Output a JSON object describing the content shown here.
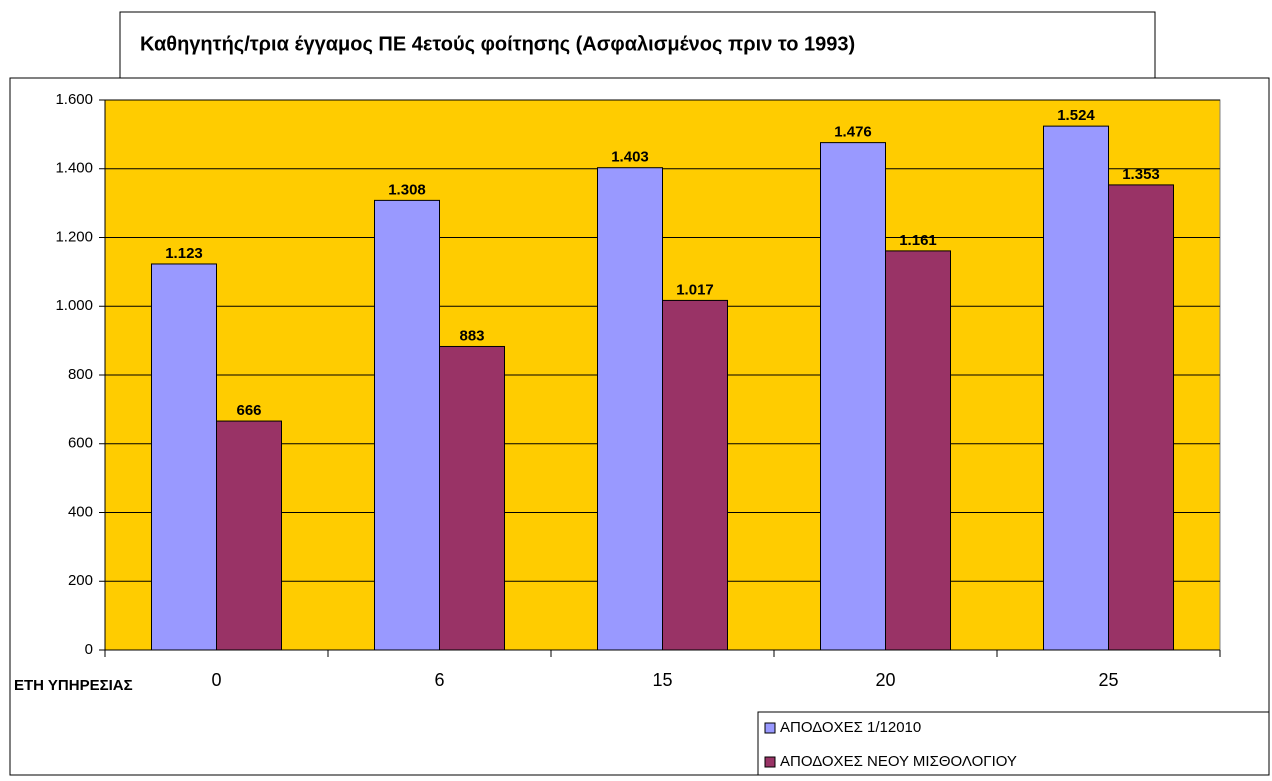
{
  "chart_data": {
    "type": "bar",
    "title": "Καθηγητής/τρια έγγαμος ΠΕ 4ετούς φοίτησης (Ασφαλισμένος πριν το 1993)",
    "x_label": "ΕΤΗ ΥΠΗΡΕΣΙΑΣ",
    "categories": [
      "0",
      "6",
      "15",
      "20",
      "25"
    ],
    "series": [
      {
        "name": "ΑΠΟΔΟΧΕΣ 1/12010",
        "color": "#9999ff",
        "values": [
          1123,
          1308,
          1403,
          1476,
          1524
        ],
        "value_labels": [
          "1.123",
          "1.308",
          "1.403",
          "1.476",
          "1.524"
        ]
      },
      {
        "name": "ΑΠΟΔΟΧΕΣ ΝΕΟΥ ΜΙΣΘΟΛΟΓΙΟΥ",
        "color": "#993366",
        "values": [
          666,
          883,
          1017,
          1161,
          1353
        ],
        "value_labels": [
          "666",
          "883",
          "1.017",
          "1.161",
          "1.353"
        ]
      }
    ],
    "ylim": [
      0,
      1600
    ],
    "yticks": [
      0,
      200,
      400,
      600,
      800,
      {
        "value": 1000,
        "label": "1.000"
      },
      {
        "value": 1200,
        "label": "1.200"
      },
      {
        "value": 1400,
        "label": "1.400"
      },
      {
        "value": 1600,
        "label": "1.600"
      }
    ],
    "grid": true,
    "plot_background": "#ffcc00",
    "legend": "lower right"
  }
}
